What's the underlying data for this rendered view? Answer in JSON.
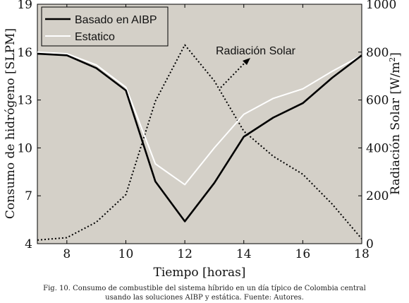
{
  "chart_data": {
    "type": "line",
    "x": [
      7,
      8,
      9,
      10,
      11,
      12,
      13,
      14,
      15,
      16,
      17,
      18
    ],
    "xlabel": "Tiempo [horas]",
    "xlim": [
      7,
      18
    ],
    "xticks": [
      "8",
      "10",
      "12",
      "14",
      "16",
      "18"
    ],
    "ylabel": "Consumo de hidrógeno [SLPM]",
    "ylim": [
      4,
      19
    ],
    "yticks": [
      "4",
      "7",
      "10",
      "13",
      "16",
      "19"
    ],
    "y2label": "Radiación Solar [W/m2]",
    "y2label_main": "Radiación Solar [W/m",
    "y2label_sup": "2",
    "y2label_end": "]",
    "y2lim": [
      0,
      1000
    ],
    "y2ticks": [
      "0",
      "200",
      "400",
      "600",
      "800",
      "1000"
    ],
    "background": "#d4d0c8",
    "legend_position": "top-left",
    "series": [
      {
        "name": "Basado en AIBP",
        "axis": "left",
        "color": "#000000",
        "style": "solid",
        "values": [
          15.9,
          15.8,
          15.0,
          13.6,
          7.9,
          5.4,
          7.8,
          10.7,
          11.9,
          12.8,
          14.4,
          15.8
        ]
      },
      {
        "name": "Estatico",
        "axis": "left",
        "color": "#ffffff",
        "style": "solid",
        "values": [
          16.0,
          15.9,
          15.2,
          13.8,
          9.0,
          7.7,
          10.0,
          12.1,
          13.1,
          13.7,
          14.8,
          15.8
        ]
      },
      {
        "name": "Radiación Solar",
        "axis": "right",
        "color": "#000000",
        "style": "dotted",
        "values": [
          15,
          25,
          90,
          205,
          595,
          830,
          680,
          470,
          365,
          290,
          165,
          20
        ]
      }
    ],
    "annotation": "Radiación Solar",
    "caption_line1": "Fig. 10. Consumo de combustible del sistema híbrido en un día típico de Colombia central",
    "caption_line2": "usando las soluciones AIBP y estática. Fuente: Autores."
  }
}
